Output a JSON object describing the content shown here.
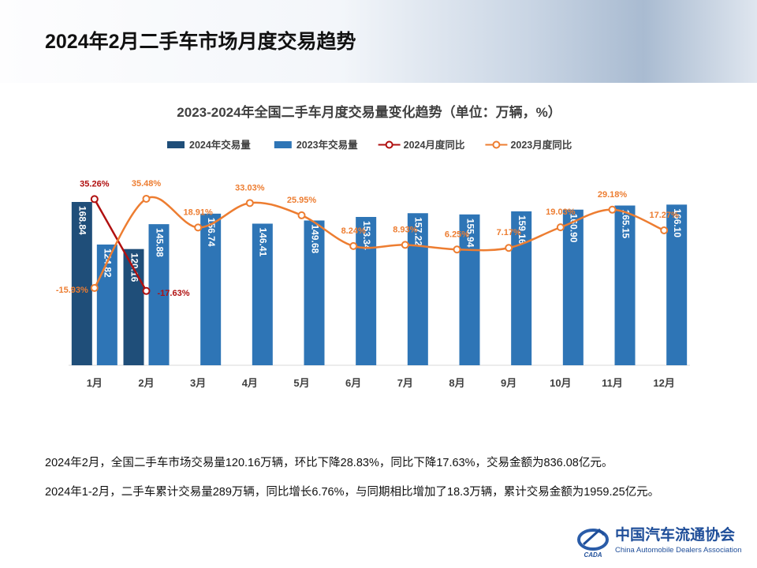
{
  "header": {
    "title": "2024年2月二手车市场月度交易趋势"
  },
  "chart_data": {
    "type": "bar-line",
    "title": "2023-2024年全国二手车月度交易量变化趋势（单位：万辆，%）",
    "categories": [
      "1月",
      "2月",
      "3月",
      "4月",
      "5月",
      "6月",
      "7月",
      "8月",
      "9月",
      "10月",
      "11月",
      "12月"
    ],
    "series": [
      {
        "name": "2024年交易量",
        "type": "bar",
        "color": "#1f4e79",
        "values": [
          168.84,
          120.16,
          null,
          null,
          null,
          null,
          null,
          null,
          null,
          null,
          null,
          null
        ]
      },
      {
        "name": "2023年交易量",
        "type": "bar",
        "color": "#2e75b6",
        "values": [
          124.82,
          145.88,
          156.74,
          146.41,
          149.68,
          153.34,
          157.22,
          155.94,
          159.16,
          160.9,
          165.15,
          166.1
        ],
        "value_labels": [
          "124.82",
          "145.88",
          "156.74",
          "146.41",
          "149.68",
          "153.34",
          "157.22",
          "155.94",
          "159.16",
          "160.90",
          "165.15",
          "166.10"
        ]
      },
      {
        "name": "2024月度同比",
        "type": "line",
        "axis": "y2",
        "color": "#b01010",
        "values": [
          35.26,
          -17.63,
          null,
          null,
          null,
          null,
          null,
          null,
          null,
          null,
          null,
          null
        ],
        "value_labels": [
          "35.26%",
          "-17.63%",
          null,
          null,
          null,
          null,
          null,
          null,
          null,
          null,
          null,
          null
        ]
      },
      {
        "name": "2023月度同比",
        "type": "line",
        "axis": "y2",
        "color": "#ed7d31",
        "values": [
          -15.93,
          35.48,
          18.91,
          33.03,
          25.95,
          8.24,
          8.93,
          6.25,
          7.17,
          19.03,
          29.18,
          17.27
        ],
        "value_labels": [
          "-15.93%",
          "35.48%",
          "18.91%",
          "33.03%",
          "25.95%",
          "8.24%",
          "8.93%",
          "6.25%",
          "7.17%",
          "19.03%",
          "29.18%",
          "17.27%"
        ]
      }
    ]
  },
  "notes": [
    "2024年2月，全国二手车市场交易量120.16万辆，环比下降28.83%，同比下降17.63%，交易金额为836.08亿元。",
    "2024年1-2月，二手车累计交易量289万辆，同比增长6.76%，与同期相比增加了18.3万辆，累计交易金额为1959.25亿元。"
  ],
  "logo": {
    "name": "中国汽车流通协会",
    "english": "China Automobile Dealers Association",
    "abbr": "CADA"
  }
}
